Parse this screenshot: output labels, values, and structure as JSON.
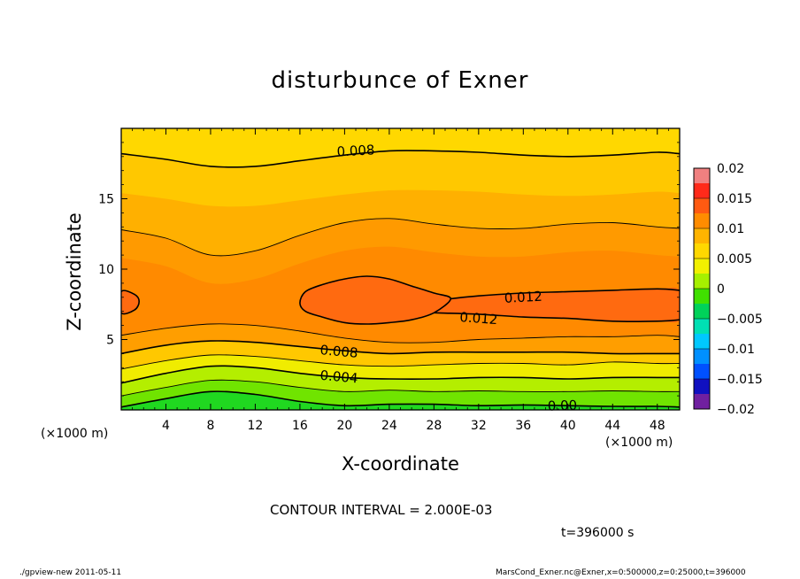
{
  "chart_data": {
    "type": "contour",
    "title": "disturbunce of Exner",
    "xlabel": "X-coordinate",
    "ylabel": "Z-coordinate",
    "x_unit": "(×1000 m)",
    "y_unit": "(×1000 m)",
    "xlim": [
      0,
      50
    ],
    "ylim": [
      0,
      20
    ],
    "x_ticks": [
      4,
      8,
      12,
      16,
      20,
      24,
      28,
      32,
      36,
      40,
      44,
      48
    ],
    "y_ticks": [
      5,
      10,
      15
    ],
    "colorbar": {
      "levels": [
        -0.02,
        -0.015,
        -0.01,
        -0.005,
        0,
        0.005,
        0.01,
        0.015,
        0.02
      ],
      "labels": [
        "0.02",
        "0.015",
        "0.01",
        "0.005",
        "0",
        "−0.005",
        "−0.01",
        "−0.015",
        "−0.02"
      ],
      "colors": [
        "#f08080",
        "#ff2a1a",
        "#ff5a12",
        "#ff8c00",
        "#ffb400",
        "#ffd800",
        "#f2f000",
        "#a6f000",
        "#40e000",
        "#00d25a",
        "#00e0b4",
        "#00c8ff",
        "#0090ff",
        "#0050ff",
        "#1010c0",
        "#7020a0"
      ]
    },
    "contour_interval": "2.000E-03",
    "contour_labels": [
      "0.008",
      "0.012",
      "0.012",
      "0.008",
      "0.004",
      "0.00"
    ],
    "contour_lines": [
      {
        "level": 0.0,
        "x": [
          0,
          4,
          8,
          12,
          16,
          20,
          24,
          28,
          32,
          36,
          40,
          44,
          48,
          50
        ],
        "z": [
          0.2,
          0.8,
          1.3,
          1.1,
          0.6,
          0.3,
          0.4,
          0.4,
          0.3,
          0.35,
          0.3,
          0.25,
          0.25,
          0.2
        ]
      },
      {
        "level": 0.002,
        "x": [
          0,
          4,
          8,
          12,
          16,
          20,
          24,
          28,
          32,
          36,
          40,
          44,
          48,
          50
        ],
        "z": [
          1.0,
          1.6,
          2.1,
          2.0,
          1.6,
          1.3,
          1.4,
          1.3,
          1.35,
          1.3,
          1.3,
          1.35,
          1.3,
          1.3
        ]
      },
      {
        "level": 0.004,
        "x": [
          0,
          4,
          8,
          12,
          16,
          20,
          24,
          28,
          32,
          36,
          40,
          44,
          48,
          50
        ],
        "z": [
          1.9,
          2.6,
          3.1,
          3.0,
          2.6,
          2.3,
          2.2,
          2.2,
          2.3,
          2.3,
          2.2,
          2.3,
          2.3,
          2.3
        ]
      },
      {
        "level": 0.006,
        "x": [
          0,
          4,
          8,
          12,
          16,
          20,
          24,
          28,
          32,
          36,
          40,
          44,
          48,
          50
        ],
        "z": [
          2.9,
          3.5,
          3.9,
          3.8,
          3.5,
          3.2,
          3.1,
          3.2,
          3.3,
          3.3,
          3.2,
          3.4,
          3.3,
          3.3
        ]
      },
      {
        "level": 0.008,
        "x": [
          0,
          4,
          8,
          12,
          16,
          20,
          24,
          28,
          32,
          36,
          40,
          44,
          48,
          50
        ],
        "z": [
          4.0,
          4.6,
          4.9,
          4.8,
          4.5,
          4.2,
          4.0,
          4.1,
          4.1,
          4.1,
          4.1,
          4.0,
          4.0,
          4.0
        ]
      },
      {
        "level": 0.01,
        "x": [
          0,
          4,
          8,
          12,
          16,
          20,
          24,
          28,
          32,
          36,
          40,
          44,
          48,
          50
        ],
        "z": [
          5.3,
          5.8,
          6.1,
          6.0,
          5.6,
          5.1,
          4.8,
          4.8,
          5.0,
          5.1,
          5.2,
          5.2,
          5.3,
          5.2
        ]
      },
      {
        "level": 0.01,
        "x": [
          0,
          4,
          8,
          12,
          16,
          20,
          24,
          28,
          32,
          36,
          40,
          44,
          48,
          50
        ],
        "z": [
          12.8,
          12.2,
          11.0,
          11.3,
          12.4,
          13.3,
          13.6,
          13.2,
          12.9,
          12.9,
          13.2,
          13.3,
          13.0,
          12.9
        ]
      },
      {
        "level": 0.008,
        "x": [
          0,
          4,
          8,
          12,
          16,
          20,
          24,
          28,
          32,
          36,
          40,
          44,
          48,
          50
        ],
        "z": [
          18.2,
          17.8,
          17.3,
          17.3,
          17.7,
          18.1,
          18.4,
          18.4,
          18.3,
          18.1,
          18.0,
          18.1,
          18.3,
          18.2
        ]
      }
    ],
    "contour_closed": [
      {
        "level": 0.012,
        "x": [
          16.0,
          16.5,
          18,
          20,
          22,
          24,
          26,
          28,
          29.5,
          28,
          26,
          24,
          22,
          20,
          18,
          16.5
        ],
        "z": [
          7.6,
          8.4,
          8.9,
          9.3,
          9.5,
          9.3,
          8.8,
          8.3,
          7.9,
          6.9,
          6.4,
          6.2,
          6.1,
          6.2,
          6.6,
          7.0
        ]
      },
      {
        "level": 0.012,
        "x": [
          0,
          1.2,
          1.6,
          1.2,
          0
        ],
        "z": [
          8.4,
          8.2,
          7.7,
          7.1,
          6.9
        ]
      },
      {
        "level": 0.012,
        "x": [
          29.5,
          32,
          36,
          40,
          44,
          48,
          50
        ],
        "z": [
          7.9,
          8.1,
          8.3,
          8.4,
          8.5,
          8.6,
          8.5
        ]
      },
      {
        "level": 0.012,
        "x": [
          28,
          32,
          36,
          40,
          44,
          48,
          50
        ],
        "z": [
          6.9,
          6.8,
          6.6,
          6.5,
          6.3,
          6.3,
          6.4
        ]
      }
    ]
  },
  "contour_info": "CONTOUR INTERVAL = 2.000E-03",
  "time_label": "t=396000 s",
  "footer": {
    "left": "./gpview-new   2011-05-11",
    "right": "MarsCond_Exner.nc@Exner,x=0:500000,z=0:25000,t=396000"
  }
}
